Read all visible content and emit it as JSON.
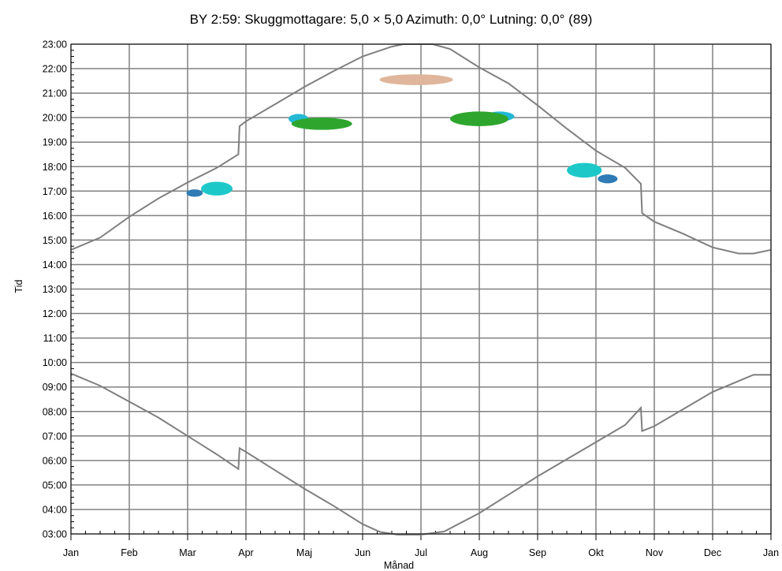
{
  "chart_data": {
    "type": "scatter",
    "title": "BY 2:59: Skuggmottagare: 5,0 × 5,0  Azimuth: 0,0°  Lutning: 0,0° (89)",
    "xlabel": "Månad",
    "ylabel": "Tid",
    "x_ticks": [
      "Jan",
      "Feb",
      "Mar",
      "Apr",
      "Maj",
      "Jun",
      "Jul",
      "Aug",
      "Sep",
      "Okt",
      "Nov",
      "Dec",
      "Jan"
    ],
    "y_ticks": [
      "03:00",
      "04:00",
      "05:00",
      "06:00",
      "07:00",
      "08:00",
      "09:00",
      "10:00",
      "11:00",
      "12:00",
      "13:00",
      "14:00",
      "15:00",
      "16:00",
      "17:00",
      "18:00",
      "19:00",
      "20:00",
      "21:00",
      "22:00",
      "23:00"
    ],
    "xlim_months": [
      0,
      12
    ],
    "ylim_hours": [
      3,
      23
    ],
    "grid": true,
    "series": [
      {
        "kind": "line",
        "color": "#7f7f7f",
        "points": [
          [
            0,
            14.6
          ],
          [
            0.5,
            15.1
          ],
          [
            1,
            15.95
          ],
          [
            1.5,
            16.7
          ],
          [
            2,
            17.35
          ],
          [
            2.5,
            17.95
          ],
          [
            2.87,
            18.5
          ],
          [
            2.89,
            19.65
          ],
          [
            3,
            19.85
          ],
          [
            3.5,
            20.55
          ],
          [
            4,
            21.25
          ],
          [
            4.5,
            21.9
          ],
          [
            5,
            22.5
          ],
          [
            5.5,
            22.9
          ],
          [
            5.7,
            23.0
          ],
          [
            6.2,
            23.0
          ],
          [
            6.5,
            22.8
          ],
          [
            7,
            22.05
          ],
          [
            7.5,
            21.4
          ],
          [
            8,
            20.5
          ],
          [
            8.5,
            19.55
          ],
          [
            9,
            18.65
          ],
          [
            9.5,
            17.95
          ],
          [
            9.77,
            17.3
          ],
          [
            9.79,
            16.1
          ],
          [
            10,
            15.75
          ],
          [
            10.5,
            15.25
          ],
          [
            11,
            14.7
          ],
          [
            11.45,
            14.45
          ],
          [
            11.7,
            14.45
          ],
          [
            12,
            14.6
          ]
        ]
      },
      {
        "kind": "line",
        "color": "#7f7f7f",
        "points": [
          [
            0,
            9.55
          ],
          [
            0.5,
            9.05
          ],
          [
            1,
            8.4
          ],
          [
            1.5,
            7.75
          ],
          [
            2,
            7.0
          ],
          [
            2.5,
            6.25
          ],
          [
            2.87,
            5.65
          ],
          [
            2.89,
            6.5
          ],
          [
            3,
            6.35
          ],
          [
            3.5,
            5.6
          ],
          [
            4,
            4.85
          ],
          [
            4.5,
            4.15
          ],
          [
            5,
            3.4
          ],
          [
            5.3,
            3.08
          ],
          [
            5.6,
            2.97
          ],
          [
            6,
            2.97
          ],
          [
            6.4,
            3.1
          ],
          [
            7,
            3.85
          ],
          [
            7.5,
            4.6
          ],
          [
            8,
            5.35
          ],
          [
            8.5,
            6.05
          ],
          [
            9,
            6.75
          ],
          [
            9.5,
            7.45
          ],
          [
            9.77,
            8.15
          ],
          [
            9.79,
            7.2
          ],
          [
            10,
            7.4
          ],
          [
            10.5,
            8.1
          ],
          [
            11,
            8.8
          ],
          [
            11.5,
            9.3
          ],
          [
            11.7,
            9.5
          ],
          [
            12,
            9.5
          ]
        ]
      }
    ],
    "shadow_areas": [
      {
        "color": "#2e7bb6",
        "x_center": 2.12,
        "y_center": 16.92,
        "x_halfwidth": 0.14,
        "y_halfheight": 0.15
      },
      {
        "color": "#1cc8c8",
        "x_center": 2.5,
        "y_center": 17.1,
        "x_halfwidth": 0.27,
        "y_halfheight": 0.28
      },
      {
        "color": "#22b8d6",
        "x_center": 3.9,
        "y_center": 19.95,
        "x_halfwidth": 0.17,
        "y_halfheight": 0.2
      },
      {
        "color": "#2ea62e",
        "x_center": 4.3,
        "y_center": 19.75,
        "x_halfwidth": 0.52,
        "y_halfheight": 0.25
      },
      {
        "color": "#dfb69b",
        "x_center": 5.92,
        "y_center": 21.55,
        "x_halfwidth": 0.63,
        "y_halfheight": 0.22
      },
      {
        "color": "#22b8d6",
        "x_center": 7.35,
        "y_center": 20.05,
        "x_halfwidth": 0.25,
        "y_halfheight": 0.2
      },
      {
        "color": "#2ea62e",
        "x_center": 7.0,
        "y_center": 19.95,
        "x_halfwidth": 0.5,
        "y_halfheight": 0.3
      },
      {
        "color": "#1cc8c8",
        "x_center": 8.8,
        "y_center": 17.85,
        "x_halfwidth": 0.3,
        "y_halfheight": 0.3
      },
      {
        "color": "#2e7bb6",
        "x_center": 9.2,
        "y_center": 17.5,
        "x_halfwidth": 0.17,
        "y_halfheight": 0.18
      }
    ]
  }
}
